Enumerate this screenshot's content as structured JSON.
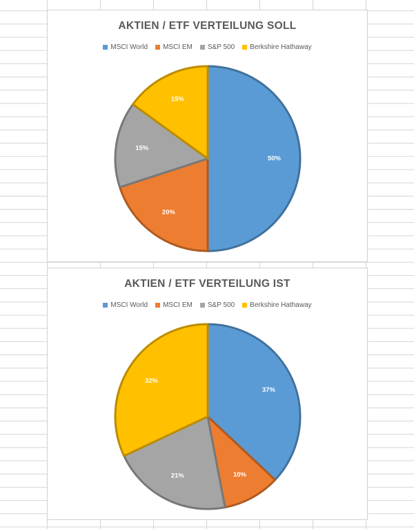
{
  "chart_data": [
    {
      "type": "pie",
      "title": "AKTIEN / ETF VERTEILUNG SOLL",
      "categories": [
        "MSCI World",
        "MSCI EM",
        "S&P 500",
        "Berkshire Hathaway"
      ],
      "values": [
        50,
        20,
        15,
        15
      ],
      "labels": [
        "50%",
        "20%",
        "15%",
        "15%"
      ],
      "colors": [
        "#5B9BD5",
        "#ED7D31",
        "#A5A5A5",
        "#FFC000"
      ],
      "legend": "top"
    },
    {
      "type": "pie",
      "title": "AKTIEN / ETF VERTEILUNG IST",
      "categories": [
        "MSCI World",
        "MSCI EM",
        "S&P 500",
        "Berkshire Hathaway"
      ],
      "values": [
        37,
        10,
        21,
        32
      ],
      "labels": [
        "37%",
        "10%",
        "21%",
        "32%"
      ],
      "colors": [
        "#5B9BD5",
        "#ED7D31",
        "#A5A5A5",
        "#FFC000"
      ],
      "legend": "top"
    }
  ]
}
